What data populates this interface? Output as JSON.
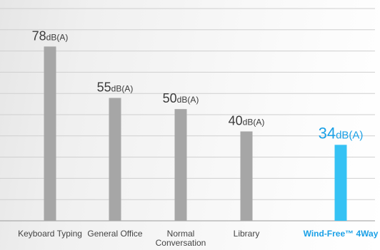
{
  "chart_data": {
    "type": "bar",
    "title": "",
    "xlabel": "",
    "ylabel": "",
    "unit": "dB(A)",
    "ylim": [
      0,
      95
    ],
    "grid": true,
    "colors": {
      "bar": "#a6a6a6",
      "highlight": "#35c2f4",
      "label": "#3b3b3b",
      "highlight_label": "#1aa0e6",
      "grid": "#cfcfcf"
    },
    "categories": [
      {
        "label": "Keyboard Typing",
        "value": 78,
        "value_text": "78",
        "highlight": false
      },
      {
        "label": "General Office",
        "value": 55,
        "value_text": "55",
        "highlight": false
      },
      {
        "label": "Normal Conversation",
        "value": 50,
        "value_text": "50",
        "highlight": false
      },
      {
        "label": "Library",
        "value": 40,
        "value_text": "40",
        "highlight": false
      },
      {
        "label": "Wind-Free™ 4Way",
        "value": 34,
        "value_text": "34",
        "highlight": true
      }
    ]
  }
}
